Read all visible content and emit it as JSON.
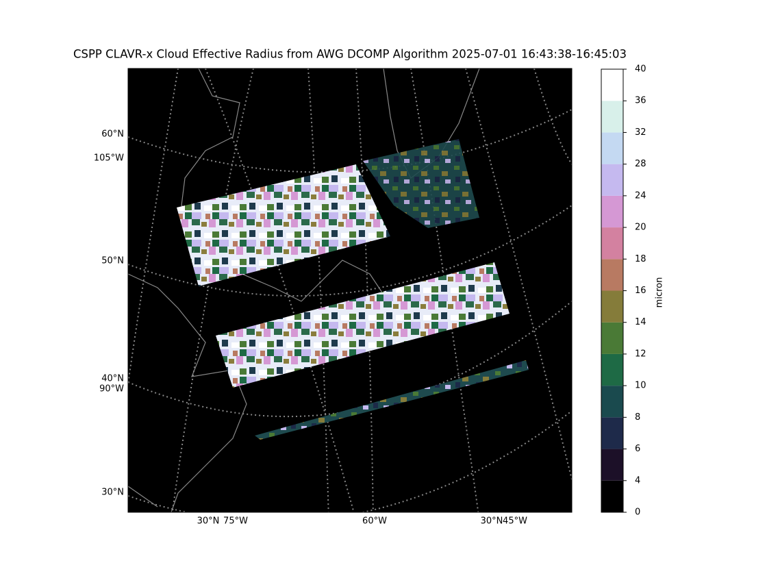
{
  "title": "CSPP CLAVR-x Cloud Effective Radius from AWG DCOMP Algorithm 2025-07-01 16:43:38-16:45:03",
  "map": {
    "labels": [
      "60°N",
      "105°W",
      "50°N",
      "40°N",
      "90°W",
      "30°N",
      "30°N",
      "75°W",
      "60°W",
      "30°N",
      "45°W"
    ]
  },
  "colorbar": {
    "label": "micron",
    "ticks": [
      0,
      4,
      6,
      8,
      10,
      12,
      14,
      16,
      18,
      20,
      24,
      28,
      32,
      36,
      40
    ],
    "colors": [
      "#000000",
      "#1c1028",
      "#1e2a4a",
      "#1a4a4e",
      "#1e6a45",
      "#4a7a36",
      "#857c3a",
      "#b87a62",
      "#d381a0",
      "#d598d4",
      "#c5b9ef",
      "#c4d9f2",
      "#d8f0ea",
      "#ffffff"
    ]
  }
}
